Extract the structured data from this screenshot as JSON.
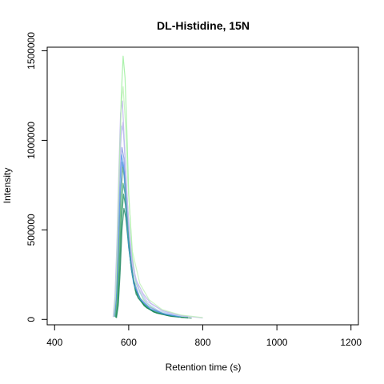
{
  "chart_data": {
    "type": "line",
    "title": "DL-Histidine, 15N",
    "xlabel": "Retention time (s)",
    "ylabel": "Intensity",
    "xlim": [
      380,
      1220
    ],
    "ylim": [
      -30000,
      1520000
    ],
    "x_ticks": [
      400,
      600,
      800,
      1000,
      1200
    ],
    "x_tick_labels": [
      "400",
      "600",
      "800",
      "1000",
      "1200"
    ],
    "y_ticks": [
      0,
      500000,
      1000000,
      1500000
    ],
    "y_tick_labels": [
      "0",
      "500000",
      "1000000",
      "1500000"
    ],
    "grid": false,
    "legend": "none",
    "series": [
      {
        "color": "#90EE90",
        "values": [
          [
            560,
            20000
          ],
          [
            565,
            150000
          ],
          [
            570,
            450000
          ],
          [
            575,
            850000
          ],
          [
            580,
            1250000
          ],
          [
            585,
            1470000
          ],
          [
            590,
            1350000
          ],
          [
            595,
            1050000
          ],
          [
            600,
            700000
          ],
          [
            610,
            350000
          ],
          [
            620,
            200000
          ],
          [
            640,
            110000
          ],
          [
            660,
            70000
          ],
          [
            680,
            45000
          ],
          [
            700,
            30000
          ],
          [
            730,
            18000
          ],
          [
            760,
            10000
          ]
        ]
      },
      {
        "color": "#B0A8E8",
        "values": [
          [
            558,
            15000
          ],
          [
            563,
            130000
          ],
          [
            568,
            420000
          ],
          [
            573,
            800000
          ],
          [
            578,
            1150000
          ],
          [
            583,
            1220000
          ],
          [
            588,
            1000000
          ],
          [
            595,
            700000
          ],
          [
            605,
            380000
          ],
          [
            620,
            220000
          ],
          [
            640,
            140000
          ],
          [
            660,
            90000
          ],
          [
            690,
            50000
          ],
          [
            720,
            30000
          ],
          [
            760,
            15000
          ]
        ]
      },
      {
        "color": "#A8C8F0",
        "values": [
          [
            560,
            20000
          ],
          [
            566,
            180000
          ],
          [
            571,
            520000
          ],
          [
            576,
            880000
          ],
          [
            581,
            1080000
          ],
          [
            586,
            1050000
          ],
          [
            592,
            820000
          ],
          [
            600,
            520000
          ],
          [
            612,
            260000
          ],
          [
            630,
            150000
          ],
          [
            650,
            90000
          ],
          [
            680,
            50000
          ],
          [
            720,
            25000
          ],
          [
            760,
            12000
          ]
        ]
      },
      {
        "color": "#7B8BE0",
        "values": [
          [
            562,
            18000
          ],
          [
            567,
            160000
          ],
          [
            572,
            480000
          ],
          [
            577,
            820000
          ],
          [
            582,
            960000
          ],
          [
            587,
            900000
          ],
          [
            593,
            700000
          ],
          [
            600,
            450000
          ],
          [
            612,
            230000
          ],
          [
            630,
            120000
          ],
          [
            655,
            70000
          ],
          [
            690,
            35000
          ],
          [
            730,
            18000
          ]
        ]
      },
      {
        "color": "#3E7FD6",
        "values": [
          [
            563,
            15000
          ],
          [
            568,
            140000
          ],
          [
            573,
            420000
          ],
          [
            578,
            720000
          ],
          [
            583,
            880000
          ],
          [
            588,
            820000
          ],
          [
            594,
            600000
          ],
          [
            602,
            380000
          ],
          [
            615,
            190000
          ],
          [
            635,
            100000
          ],
          [
            660,
            55000
          ],
          [
            700,
            28000
          ],
          [
            740,
            12000
          ]
        ]
      },
      {
        "color": "#5FAF6F",
        "values": [
          [
            564,
            12000
          ],
          [
            569,
            120000
          ],
          [
            574,
            380000
          ],
          [
            579,
            680000
          ],
          [
            584,
            850000
          ],
          [
            589,
            780000
          ],
          [
            595,
            580000
          ],
          [
            603,
            360000
          ],
          [
            616,
            180000
          ],
          [
            636,
            95000
          ],
          [
            662,
            50000
          ],
          [
            700,
            25000
          ],
          [
            745,
            11000
          ]
        ]
      },
      {
        "color": "#2EA06A",
        "values": [
          [
            565,
            10000
          ],
          [
            570,
            100000
          ],
          [
            575,
            330000
          ],
          [
            580,
            600000
          ],
          [
            585,
            760000
          ],
          [
            590,
            700000
          ],
          [
            596,
            520000
          ],
          [
            605,
            320000
          ],
          [
            618,
            160000
          ],
          [
            640,
            85000
          ],
          [
            665,
            45000
          ],
          [
            705,
            22000
          ],
          [
            750,
            10000
          ]
        ]
      },
      {
        "color": "#1E8C5A",
        "values": [
          [
            566,
            10000
          ],
          [
            571,
            90000
          ],
          [
            576,
            300000
          ],
          [
            581,
            560000
          ],
          [
            586,
            700000
          ],
          [
            591,
            640000
          ],
          [
            598,
            460000
          ],
          [
            607,
            280000
          ],
          [
            620,
            140000
          ],
          [
            642,
            75000
          ],
          [
            668,
            40000
          ],
          [
            710,
            20000
          ],
          [
            760,
            8000
          ]
        ]
      },
      {
        "color": "#0F7D55",
        "values": [
          [
            567,
            8000
          ],
          [
            572,
            80000
          ],
          [
            577,
            260000
          ],
          [
            582,
            500000
          ],
          [
            587,
            620000
          ],
          [
            592,
            570000
          ],
          [
            600,
            400000
          ],
          [
            610,
            240000
          ],
          [
            625,
            120000
          ],
          [
            648,
            65000
          ],
          [
            675,
            35000
          ],
          [
            715,
            17000
          ],
          [
            770,
            7000
          ]
        ]
      },
      {
        "color": "#4C9BE8",
        "values": [
          [
            561,
            15000
          ],
          [
            566,
            140000
          ],
          [
            571,
            430000
          ],
          [
            576,
            760000
          ],
          [
            581,
            920000
          ],
          [
            586,
            860000
          ],
          [
            592,
            640000
          ],
          [
            600,
            400000
          ],
          [
            613,
            200000
          ],
          [
            632,
            110000
          ],
          [
            658,
            60000
          ],
          [
            695,
            30000
          ],
          [
            740,
            14000
          ]
        ]
      },
      {
        "color": "#C4B8F0",
        "values": [
          [
            559,
            12000
          ],
          [
            564,
            110000
          ],
          [
            569,
            360000
          ],
          [
            574,
            700000
          ],
          [
            579,
            1020000
          ],
          [
            584,
            1100000
          ],
          [
            590,
            900000
          ],
          [
            598,
            600000
          ],
          [
            610,
            300000
          ],
          [
            628,
            170000
          ],
          [
            650,
            100000
          ],
          [
            690,
            50000
          ],
          [
            740,
            22000
          ],
          [
            800,
            8000
          ]
        ]
      },
      {
        "color": "#B8F0B0",
        "values": [
          [
            560,
            15000
          ],
          [
            565,
            150000
          ],
          [
            570,
            480000
          ],
          [
            575,
            880000
          ],
          [
            580,
            1200000
          ],
          [
            585,
            1300000
          ],
          [
            591,
            1100000
          ],
          [
            598,
            750000
          ],
          [
            610,
            380000
          ],
          [
            630,
            200000
          ],
          [
            655,
            110000
          ],
          [
            690,
            55000
          ],
          [
            740,
            25000
          ],
          [
            800,
            10000
          ]
        ]
      }
    ]
  }
}
